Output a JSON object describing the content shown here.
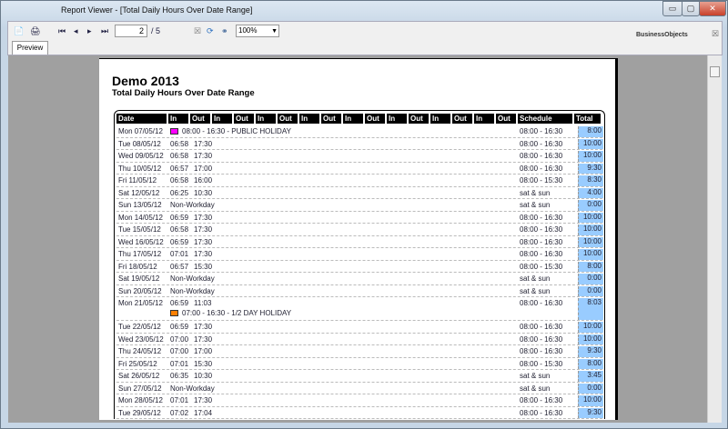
{
  "window": {
    "title": "Report Viewer - [Total Daily Hours Over Date Range]"
  },
  "toolbar": {
    "current_page": "2",
    "total_pages": "/ 5",
    "zoom": "100%",
    "tab": "Preview",
    "brand": "BusinessObjects"
  },
  "report": {
    "title": "Demo 2013",
    "subtitle": "Total Daily Hours Over Date Range",
    "headers": [
      "Date",
      "In",
      "Out",
      "In",
      "Out",
      "In",
      "Out",
      "In",
      "Out",
      "In",
      "Out",
      "In",
      "Out",
      "In",
      "Out",
      "In",
      "Out",
      "Schedule",
      "Total"
    ],
    "rows": [
      {
        "date": "Mon 07/05/12",
        "in": "",
        "out": "",
        "note": "08:00 - 16:30 - PUBLIC  HOLIDAY",
        "note_color": "#ff00ff",
        "schedule": "08:00 - 16:30",
        "total": "8:00"
      },
      {
        "date": "Tue 08/05/12",
        "in": "06:58",
        "out": "17:30",
        "schedule": "08:00 - 16:30",
        "total": "10:00"
      },
      {
        "date": "Wed 09/05/12",
        "in": "06:58",
        "out": "17:30",
        "schedule": "08:00 - 16:30",
        "total": "10:00"
      },
      {
        "date": "Thu 10/05/12",
        "in": "06:57",
        "out": "17:00",
        "schedule": "08:00 - 16:30",
        "total": "9:30"
      },
      {
        "date": "Fri 11/05/12",
        "in": "06:58",
        "out": "16:00",
        "schedule": "08:00 - 15:30",
        "total": "8:30"
      },
      {
        "date": "Sat 12/05/12",
        "in": "06:25",
        "out": "10:30",
        "schedule": "sat & sun",
        "total": "4:00"
      },
      {
        "date": "Sun 13/05/12",
        "in": "Non-Workday",
        "out": "",
        "schedule": "sat & sun",
        "total": "0:00"
      },
      {
        "date": "Mon 14/05/12",
        "in": "06:59",
        "out": "17:30",
        "schedule": "08:00 - 16:30",
        "total": "10:00"
      },
      {
        "date": "Tue 15/05/12",
        "in": "06:58",
        "out": "17:30",
        "schedule": "08:00 - 16:30",
        "total": "10:00"
      },
      {
        "date": "Wed 16/05/12",
        "in": "06:59",
        "out": "17:30",
        "schedule": "08:00 - 16:30",
        "total": "10:00"
      },
      {
        "date": "Thu 17/05/12",
        "in": "07:01",
        "out": "17:30",
        "schedule": "08:00 - 16:30",
        "total": "10:00"
      },
      {
        "date": "Fri 18/05/12",
        "in": "06:57",
        "out": "15:30",
        "schedule": "08:00 - 15:30",
        "total": "8:00"
      },
      {
        "date": "Sat 19/05/12",
        "in": "Non-Workday",
        "out": "",
        "schedule": "sat & sun",
        "total": "0:00"
      },
      {
        "date": "Sun 20/05/12",
        "in": "Non-Workday",
        "out": "",
        "schedule": "sat & sun",
        "total": "0:00"
      },
      {
        "date": "Mon 21/05/12",
        "in": "06:59",
        "out": "11:03",
        "note": "07:00 - 16:30 - 1/2 DAY HOLIDAY",
        "note_color": "#ff8000",
        "schedule": "08:00 - 16:30",
        "total": "8:03"
      },
      {
        "date": "Tue 22/05/12",
        "in": "06:59",
        "out": "17:30",
        "schedule": "08:00 - 16:30",
        "total": "10:00"
      },
      {
        "date": "Wed 23/05/12",
        "in": "07:00",
        "out": "17:30",
        "schedule": "08:00 - 16:30",
        "total": "10:00"
      },
      {
        "date": "Thu 24/05/12",
        "in": "07:00",
        "out": "17:00",
        "schedule": "08:00 - 16:30",
        "total": "9:30"
      },
      {
        "date": "Fri 25/05/12",
        "in": "07:01",
        "out": "15:30",
        "schedule": "08:00 - 15:30",
        "total": "8:00"
      },
      {
        "date": "Sat 26/05/12",
        "in": "06:35",
        "out": "10:30",
        "schedule": "sat & sun",
        "total": "3:45"
      },
      {
        "date": "Sun 27/05/12",
        "in": "Non-Workday",
        "out": "",
        "schedule": "sat & sun",
        "total": "0:00"
      },
      {
        "date": "Mon 28/05/12",
        "in": "07:01",
        "out": "17:30",
        "schedule": "08:00 - 16:30",
        "total": "10:00"
      },
      {
        "date": "Tue 29/05/12",
        "in": "07:02",
        "out": "17:04",
        "schedule": "08:00 - 16:30",
        "total": "9:30"
      }
    ]
  }
}
